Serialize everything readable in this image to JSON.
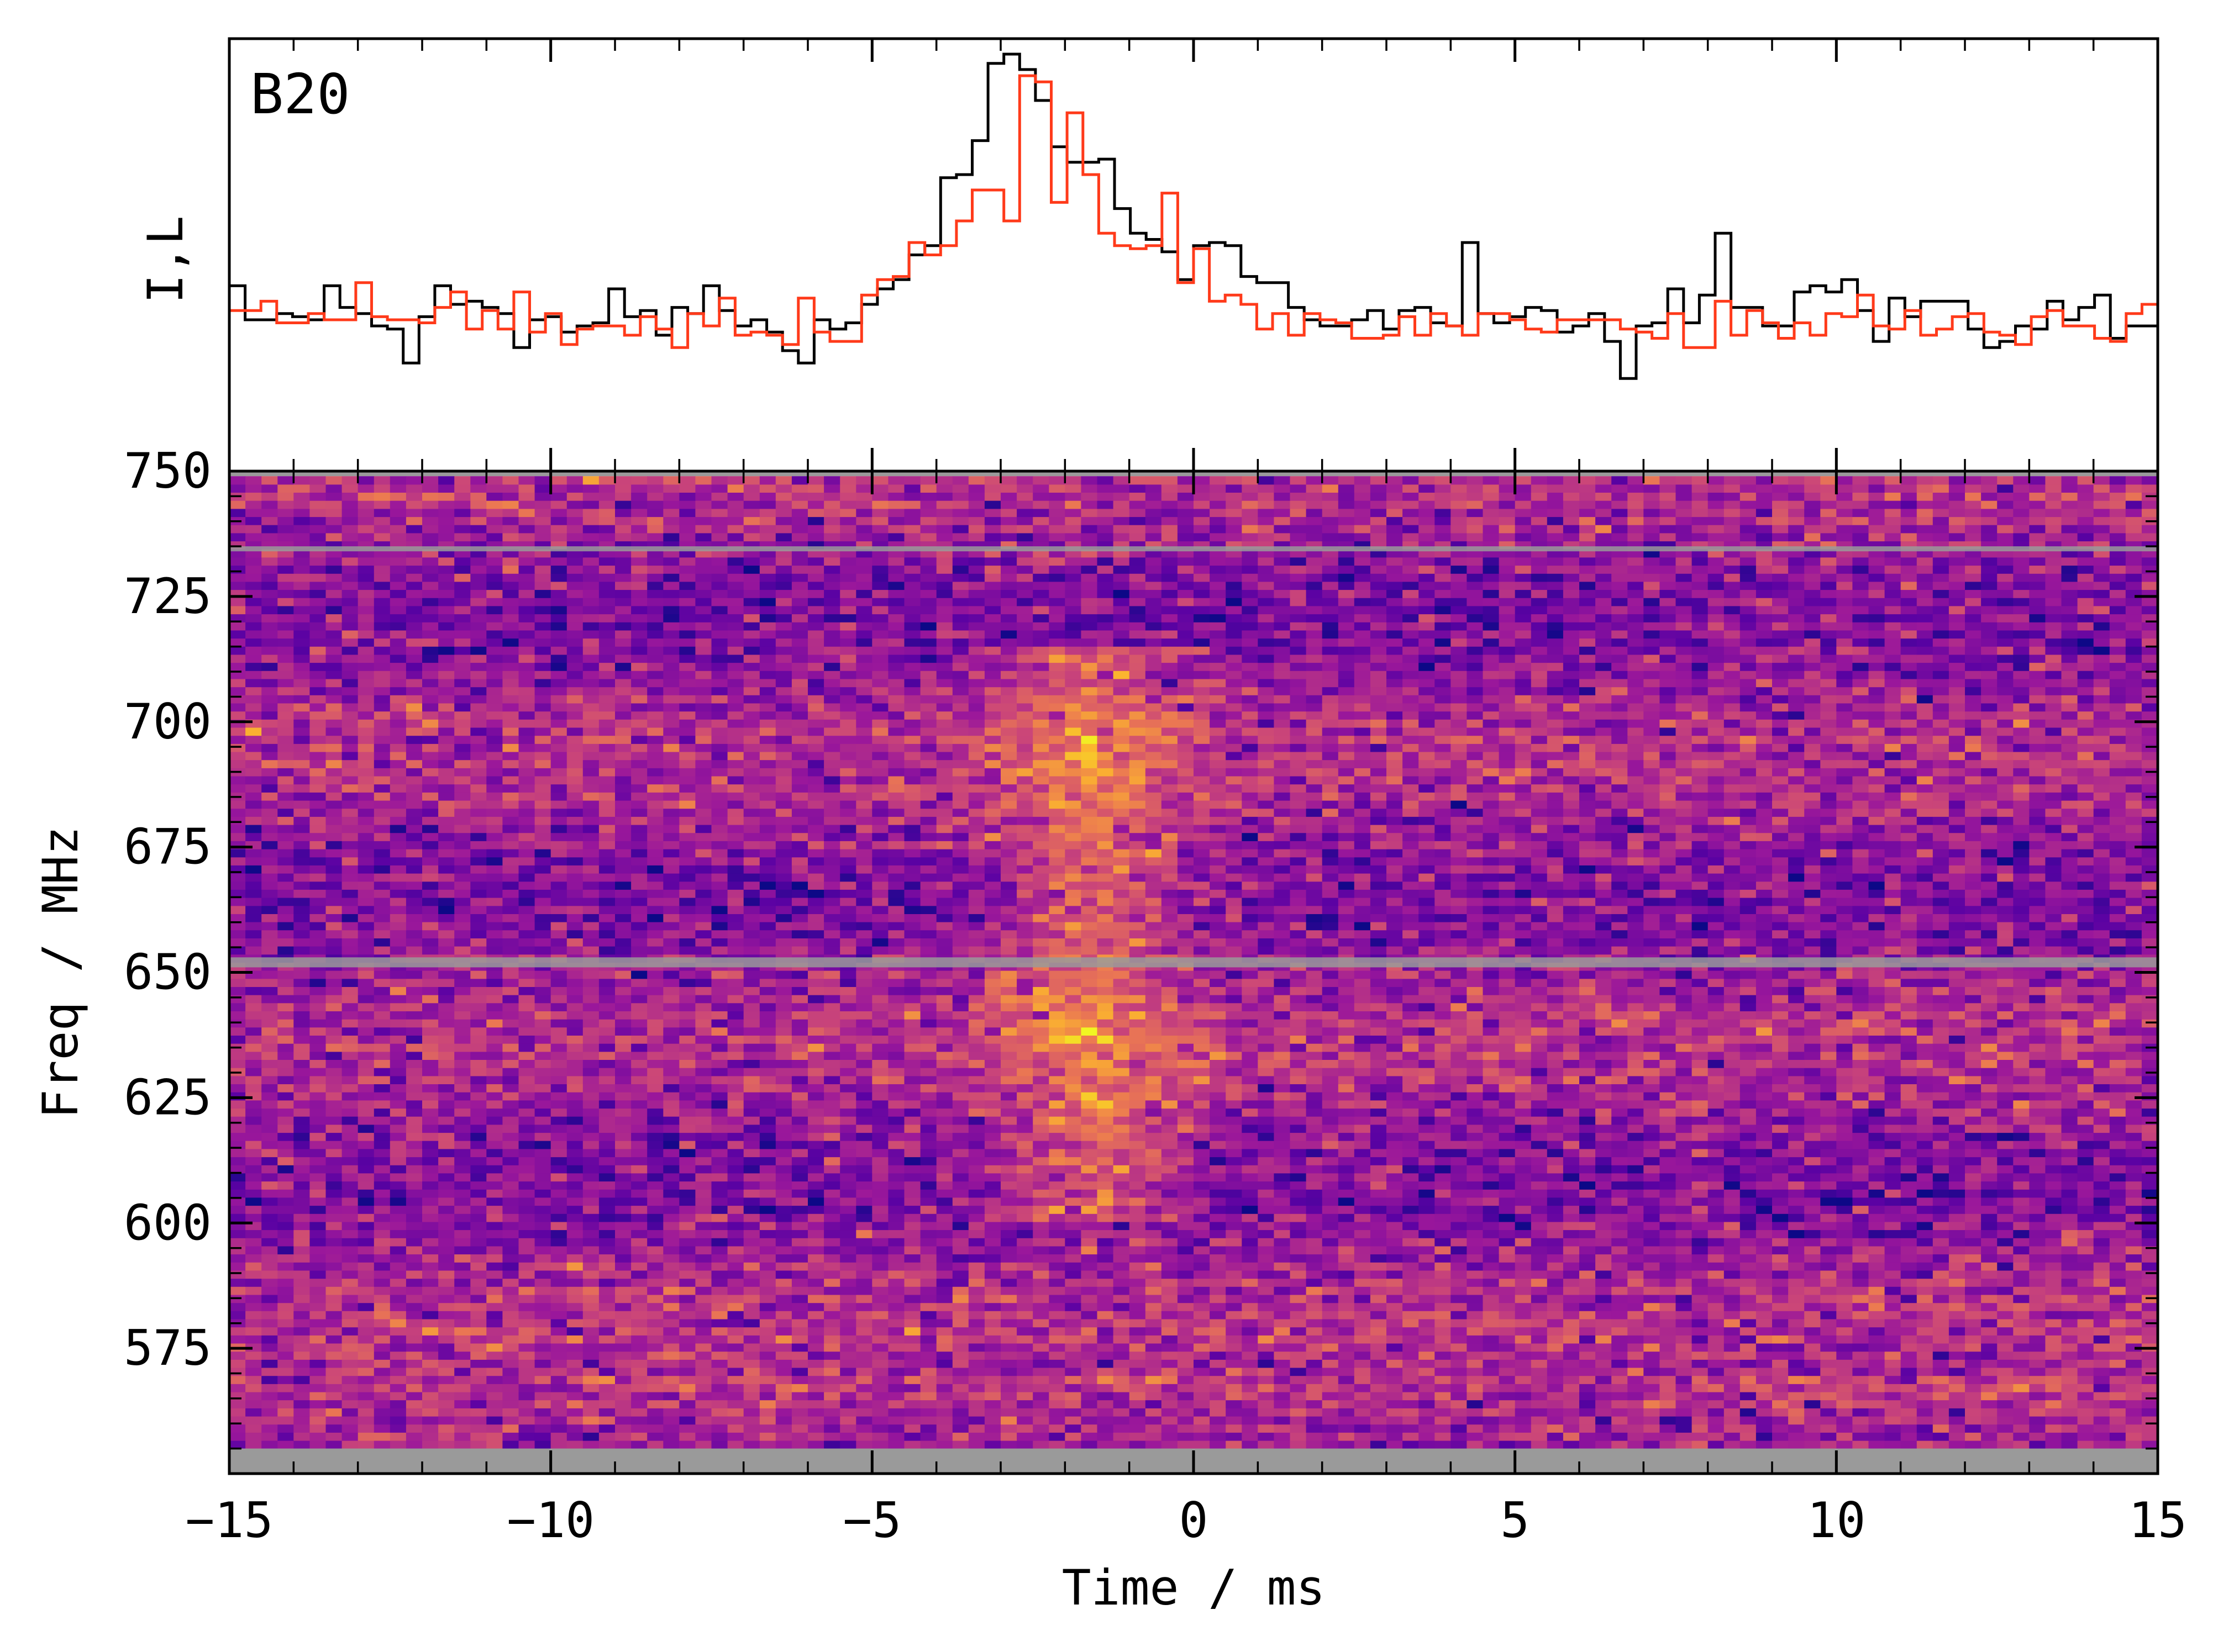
{
  "colors": {
    "intensity_line": "#000000",
    "linear_line": "#ff3a1a",
    "masked_channel": "#9a9a9a",
    "colormap": [
      "#0d0887",
      "#5b02a3",
      "#9a179b",
      "#cb4678",
      "#eb7852",
      "#fbb32f",
      "#f0f921"
    ]
  },
  "chart_data": [
    {
      "type": "line",
      "panel": "profile",
      "annotation": "B20",
      "ylabel": "I,L",
      "xlim": [
        -15,
        15
      ],
      "ylim": [
        -0.35,
        1.05
      ],
      "series": [
        {
          "values": [
            0.25,
            0.14,
            0.14,
            0.16,
            0.15,
            0.14,
            0.25,
            0.18,
            0.16,
            0.12,
            0.11,
            0.0,
            0.15,
            0.25,
            0.19,
            0.2,
            0.18,
            0.16,
            0.05,
            0.14,
            0.15,
            0.1,
            0.12,
            0.13,
            0.24,
            0.15,
            0.17,
            0.09,
            0.18,
            0.16,
            0.25,
            0.17,
            0.12,
            0.14,
            0.1,
            0.04,
            0.0,
            0.14,
            0.11,
            0.13,
            0.19,
            0.24,
            0.27,
            0.35,
            0.38,
            0.6,
            0.61,
            0.72,
            0.97,
            1.0,
            0.95,
            0.85,
            0.7,
            0.65,
            0.65,
            0.66,
            0.5,
            0.42,
            0.4,
            0.36,
            0.27,
            0.38,
            0.39,
            0.38,
            0.28,
            0.26,
            0.26,
            0.18,
            0.14,
            0.12,
            0.12,
            0.14,
            0.17,
            0.11,
            0.17,
            0.18,
            0.13,
            0.12,
            0.39,
            0.16,
            0.13,
            0.15,
            0.18,
            0.17,
            0.1,
            0.12,
            0.16,
            0.07,
            -0.05,
            0.12,
            0.13,
            0.24,
            0.13,
            0.22,
            0.42,
            0.18,
            0.18,
            0.12,
            0.12,
            0.23,
            0.25,
            0.23,
            0.27,
            0.17,
            0.07,
            0.21,
            0.15,
            0.2,
            0.2,
            0.2,
            0.11,
            0.05,
            0.07,
            0.12,
            0.11,
            0.2,
            0.14,
            0.18,
            0.22,
            0.08,
            0.12,
            0.12
          ]
        },
        {
          "values": [
            0.17,
            0.17,
            0.2,
            0.13,
            0.13,
            0.16,
            0.14,
            0.14,
            0.26,
            0.15,
            0.14,
            0.14,
            0.13,
            0.18,
            0.23,
            0.11,
            0.17,
            0.11,
            0.23,
            0.1,
            0.16,
            0.06,
            0.11,
            0.12,
            0.12,
            0.09,
            0.15,
            0.11,
            0.05,
            0.16,
            0.12,
            0.21,
            0.09,
            0.1,
            0.09,
            0.06,
            0.21,
            0.1,
            0.07,
            0.07,
            0.22,
            0.27,
            0.28,
            0.39,
            0.35,
            0.38,
            0.46,
            0.56,
            0.56,
            0.46,
            0.93,
            0.91,
            0.52,
            0.81,
            0.61,
            0.42,
            0.38,
            0.37,
            0.38,
            0.55,
            0.26,
            0.37,
            0.2,
            0.22,
            0.19,
            0.11,
            0.16,
            0.09,
            0.16,
            0.14,
            0.13,
            0.08,
            0.08,
            0.09,
            0.15,
            0.09,
            0.16,
            0.12,
            0.09,
            0.16,
            0.16,
            0.14,
            0.11,
            0.1,
            0.14,
            0.14,
            0.14,
            0.14,
            0.11,
            0.1,
            0.08,
            0.16,
            0.05,
            0.05,
            0.2,
            0.09,
            0.17,
            0.13,
            0.08,
            0.13,
            0.09,
            0.16,
            0.15,
            0.22,
            0.12,
            0.11,
            0.17,
            0.09,
            0.11,
            0.15,
            0.16,
            0.1,
            0.09,
            0.06,
            0.15,
            0.17,
            0.12,
            0.12,
            0.08,
            0.07,
            0.16,
            0.19
          ]
        }
      ]
    },
    {
      "type": "heatmap",
      "panel": "dynamic_spectrum",
      "xlabel": "Time / ms",
      "ylabel": "Freq / MHz",
      "xlim": [
        -15,
        15
      ],
      "ylim": [
        550,
        750
      ],
      "data_freq_range": [
        555,
        749
      ],
      "masked_freq_bands": [
        [
          734,
          735
        ],
        [
          651,
          653
        ],
        [
          550,
          555
        ]
      ],
      "xticks": [
        "−15",
        "−10",
        "−5",
        "0",
        "5",
        "10",
        "15"
      ],
      "yticks": [
        "575",
        "600",
        "625",
        "650",
        "675",
        "700",
        "725",
        "750"
      ],
      "burst": {
        "time_ms": -1.6,
        "freq_bands_MHz": [
          [
            600,
            720
          ]
        ]
      }
    }
  ]
}
